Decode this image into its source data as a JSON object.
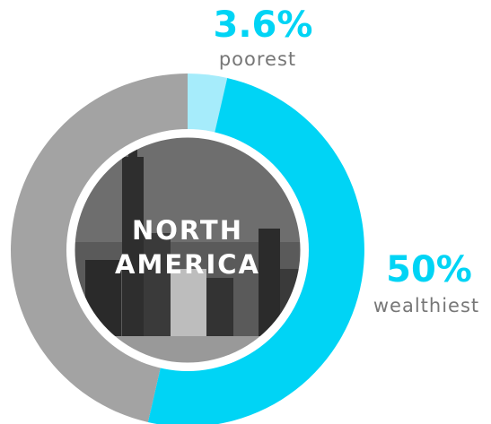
{
  "chart_data": {
    "type": "pie",
    "donut": true,
    "center_label": [
      "NORTH",
      "AMERICA"
    ],
    "categories": [
      "poorest",
      "wealthiest",
      null
    ],
    "values": [
      3.6,
      50,
      46.4
    ],
    "value_labels": [
      "3.6%",
      "50%",
      null
    ],
    "colors": [
      "#a6ecfb",
      "#00d4f5",
      "#a3a3a3"
    ]
  }
}
